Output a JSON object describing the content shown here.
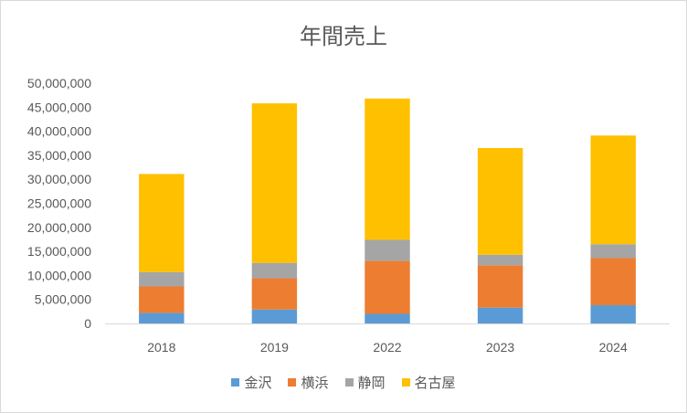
{
  "chart_data": {
    "type": "bar",
    "stacked": true,
    "title": "年間売上",
    "xlabel": "",
    "ylabel": "",
    "categories": [
      "2018",
      "2019",
      "2022",
      "2023",
      "2024"
    ],
    "series": [
      {
        "name": "金沢",
        "color": "#5b9bd5",
        "values": [
          2200000,
          2900000,
          2000000,
          3300000,
          3800000
        ]
      },
      {
        "name": "横浜",
        "color": "#ed7d31",
        "values": [
          5500000,
          6500000,
          11000000,
          8800000,
          9800000
        ]
      },
      {
        "name": "静岡",
        "color": "#a5a5a5",
        "values": [
          3000000,
          3200000,
          4400000,
          2200000,
          2900000
        ]
      },
      {
        "name": "名古屋",
        "color": "#ffc000",
        "values": [
          20400000,
          33200000,
          29400000,
          22200000,
          22600000
        ]
      }
    ],
    "ylim": [
      0,
      50000000
    ],
    "yticks": [
      "0",
      "5,000,000",
      "10,000,000",
      "15,000,000",
      "20,000,000",
      "25,000,000",
      "30,000,000",
      "35,000,000",
      "40,000,000",
      "45,000,000",
      "50,000,000"
    ],
    "grid": false,
    "legend": "bottom"
  }
}
